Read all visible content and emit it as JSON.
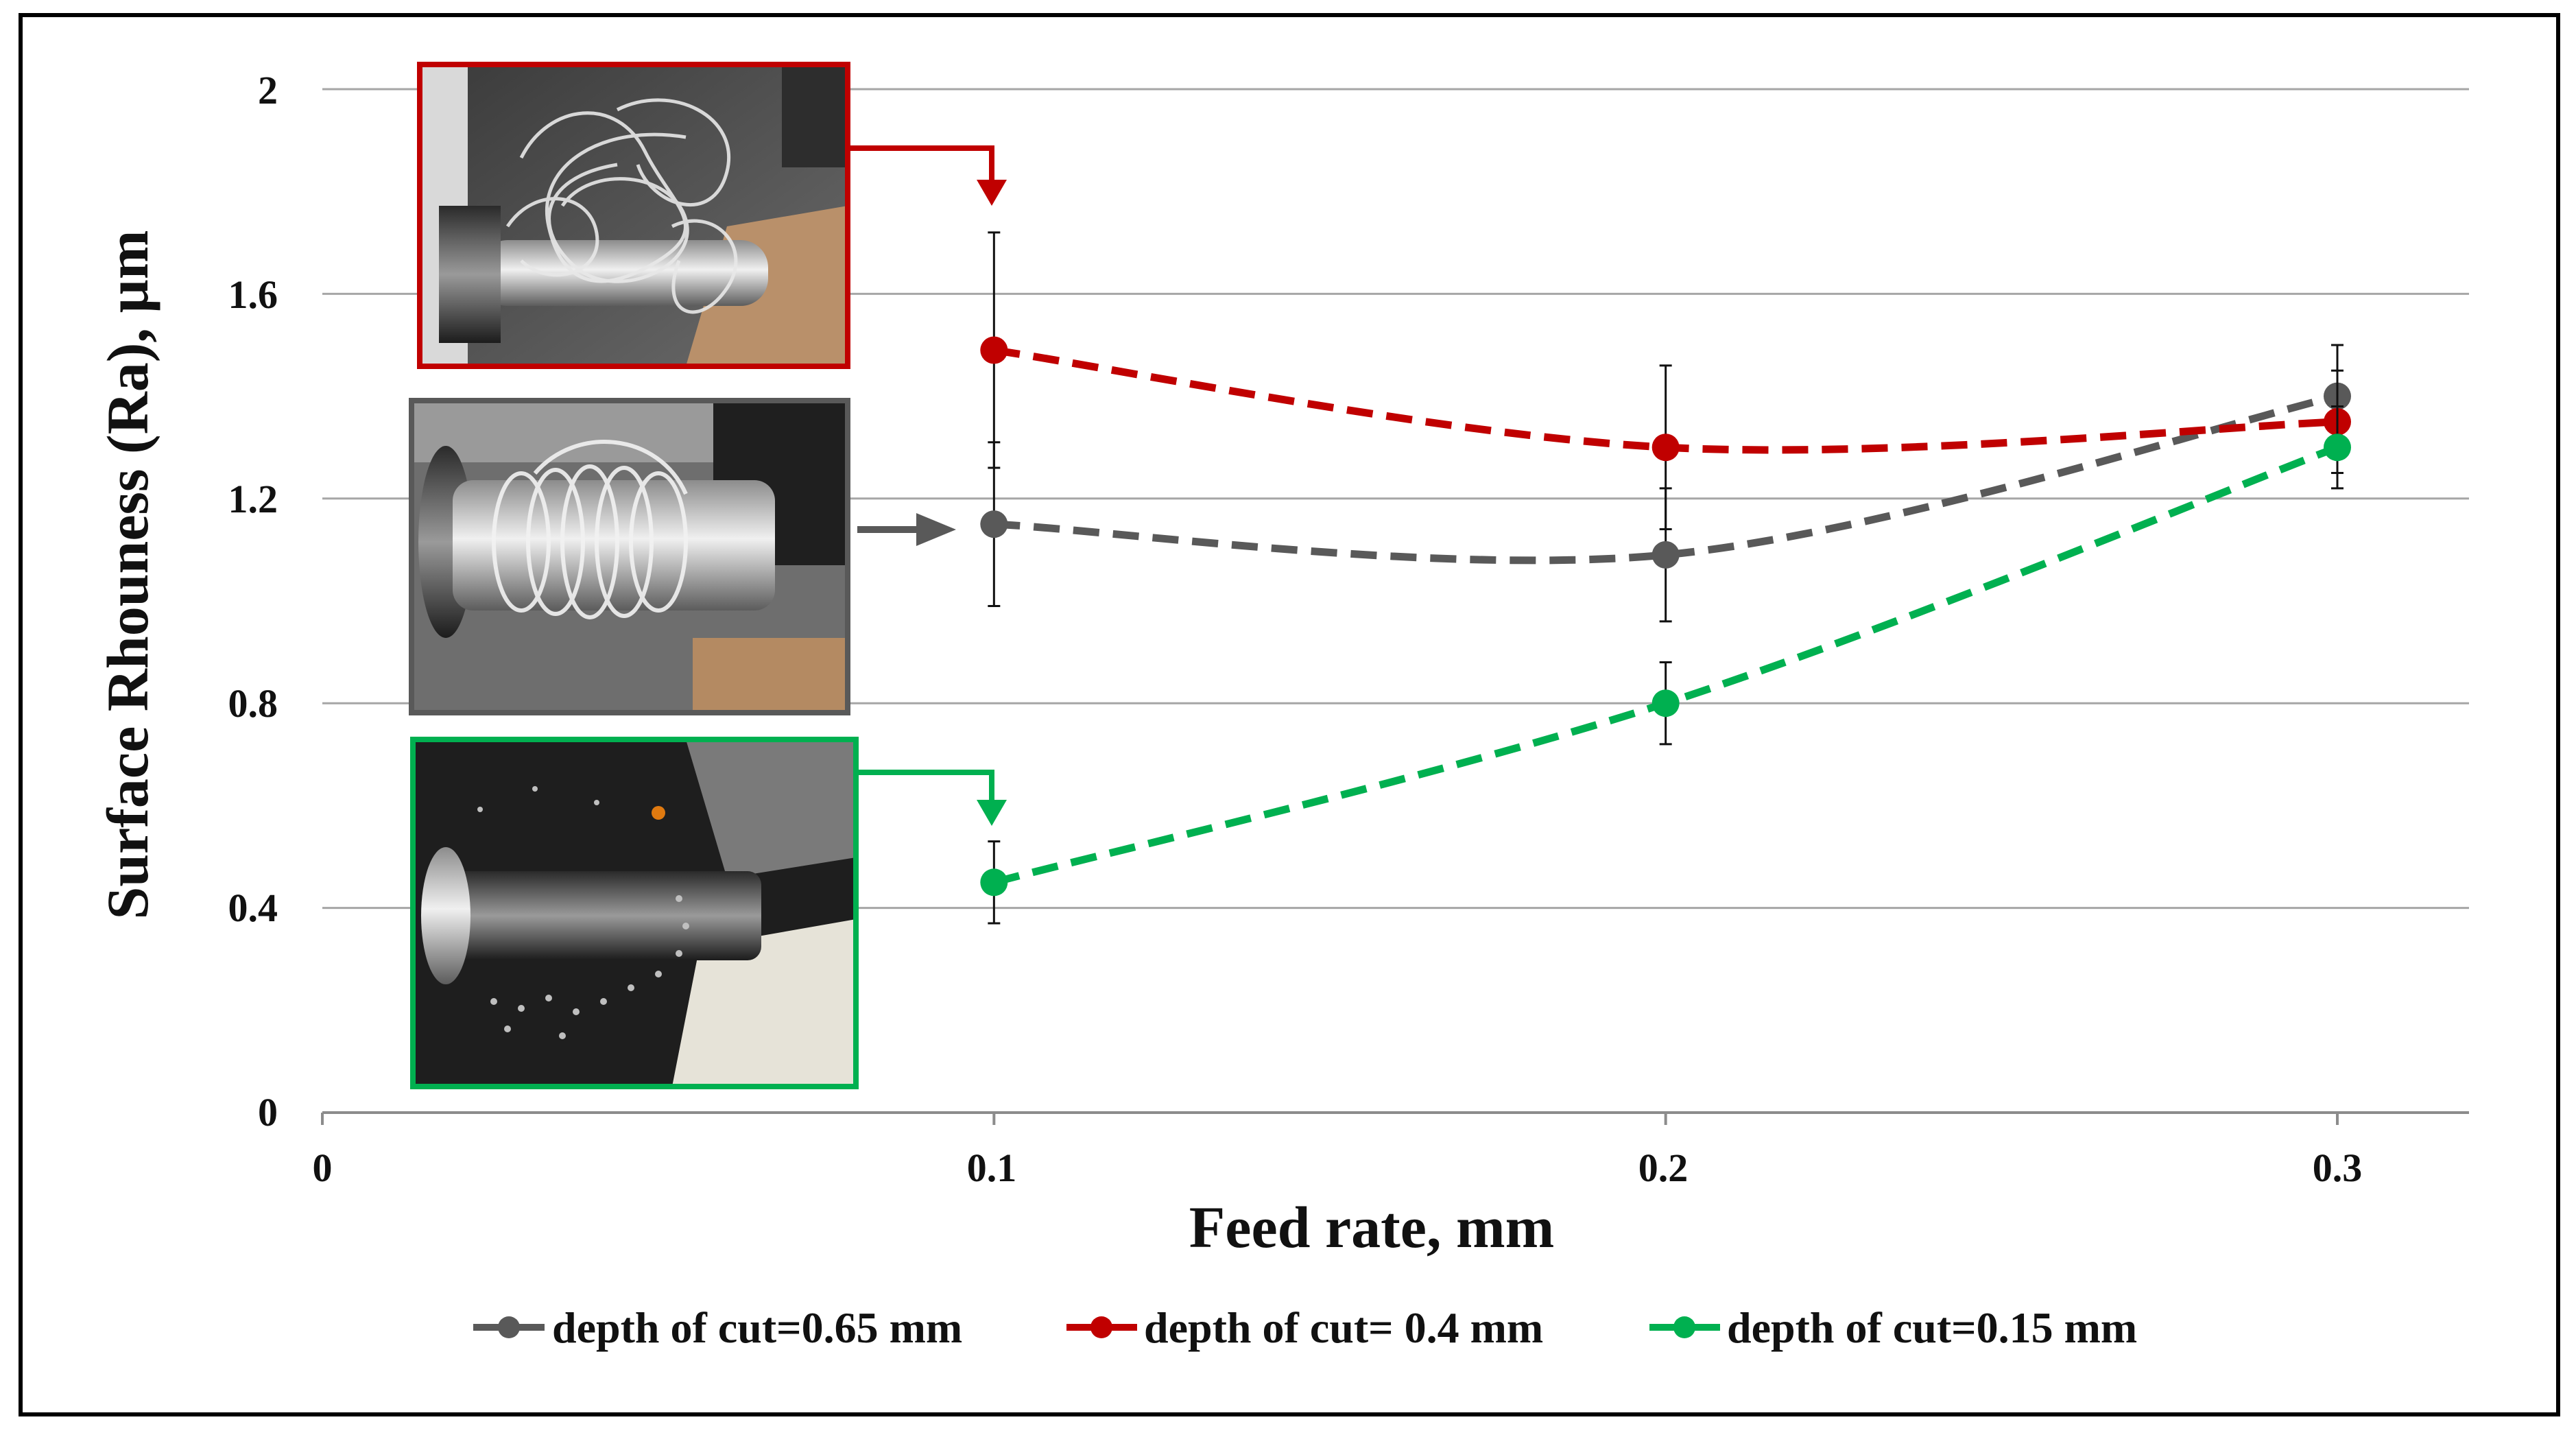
{
  "chart_data": {
    "type": "line",
    "xlabel": "Feed rate, mm",
    "ylabel": "Surface Rhouness (Ra), µm",
    "xlim": [
      0,
      0.32
    ],
    "ylim": [
      0,
      2
    ],
    "x_ticks": [
      "0",
      "0.1",
      "0.2",
      "0.3"
    ],
    "y_ticks": [
      "0",
      "0.4",
      "0.8",
      "1.2",
      "1.6",
      "2"
    ],
    "grid": "horizontal",
    "legend_position": "bottom",
    "line_style": "dashed-smoothed",
    "series": [
      {
        "name": "depth of cut=0.65 mm",
        "color": "#595959",
        "x": [
          0.1,
          0.2,
          0.3
        ],
        "y": [
          1.15,
          1.09,
          1.4
        ],
        "error": [
          0.16,
          0.13,
          0.1
        ]
      },
      {
        "name": "depth of cut= 0.4 mm",
        "color": "#c00000",
        "x": [
          0.1,
          0.2,
          0.3
        ],
        "y": [
          1.49,
          1.3,
          1.35
        ],
        "error": [
          0.23,
          0.16,
          0.1
        ]
      },
      {
        "name": "depth of cut=0.15 mm",
        "color": "#00b050",
        "x": [
          0.1,
          0.2,
          0.3
        ],
        "y": [
          0.45,
          0.8,
          1.3
        ],
        "error": [
          0.08,
          0.08,
          0.08
        ]
      }
    ],
    "annotations": [
      {
        "type": "photo",
        "subject": "long tangled chips on lathe",
        "border_color": "#c00000",
        "points_to_series": 1
      },
      {
        "type": "photo",
        "subject": "coiled chips around workpiece",
        "border_color": "#595959",
        "points_to_series": 0
      },
      {
        "type": "photo",
        "subject": "short fragmented chips",
        "border_color": "#00b050",
        "points_to_series": 2
      }
    ]
  }
}
